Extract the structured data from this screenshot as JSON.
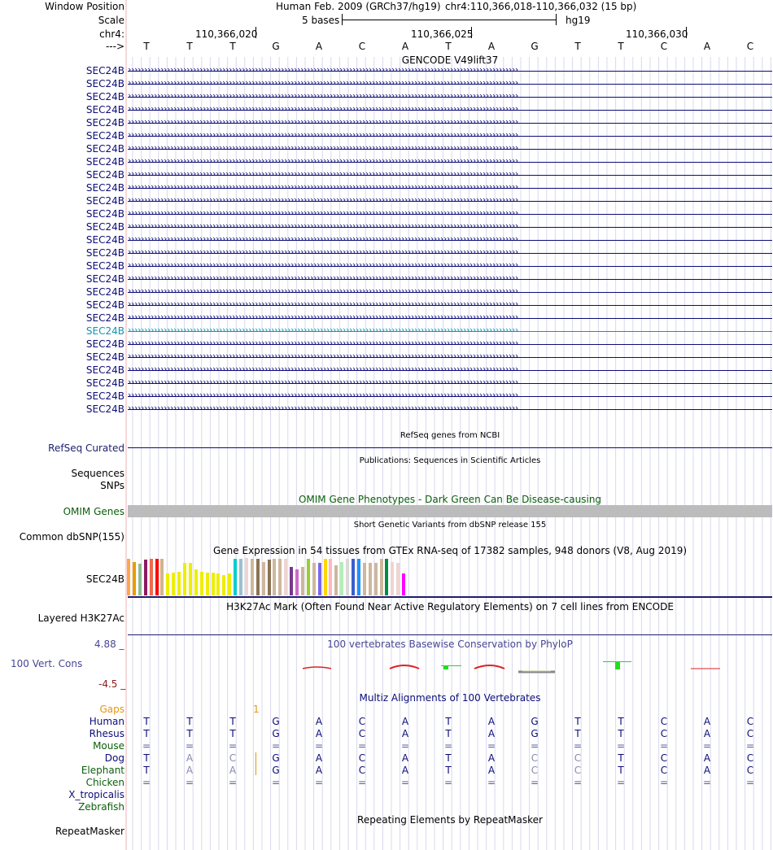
{
  "header": {
    "window_position_label": "Window Position",
    "scale_label": "Scale",
    "chr_label": "chr4:",
    "strand_label": "--->",
    "assembly": "Human Feb. 2009 (GRCh37/hg19)",
    "position": "chr4:110,366,018-110,366,032 (15 bp)",
    "scale_text": "5 bases",
    "scale_db": "hg19",
    "coords": [
      "110,366,020",
      "110,366,025",
      "110,366,030"
    ]
  },
  "bases": [
    "T",
    "T",
    "T",
    "G",
    "A",
    "C",
    "A",
    "T",
    "A",
    "G",
    "T",
    "T",
    "C",
    "A",
    "C"
  ],
  "gencode": {
    "title": "GENCODE V49lift37",
    "genes": [
      "SEC24B",
      "SEC24B",
      "SEC24B",
      "SEC24B",
      "SEC24B",
      "SEC24B",
      "SEC24B",
      "SEC24B",
      "SEC24B",
      "SEC24B",
      "SEC24B",
      "SEC24B",
      "SEC24B",
      "SEC24B",
      "SEC24B",
      "SEC24B",
      "SEC24B",
      "SEC24B",
      "SEC24B",
      "SEC24B",
      "SEC24B",
      "SEC24B",
      "SEC24B",
      "SEC24B",
      "SEC24B",
      "SEC24B",
      "SEC24B"
    ],
    "highlight_index": 20,
    "colors": {
      "gene": "#0c0c78",
      "highlight": "#1094b0"
    }
  },
  "refseq": {
    "title": "RefSeq genes from NCBI",
    "label": "RefSeq Curated"
  },
  "publications": {
    "title": "Publications: Sequences in Scientific Articles",
    "label1": "Sequences",
    "label2": "SNPs"
  },
  "omim": {
    "title": "OMIM Gene Phenotypes - Dark Green Can Be Disease-causing",
    "label": "OMIM Genes",
    "color": "#0b5e0b"
  },
  "dbsnp": {
    "title": "Short Genetic Variants from dbSNP release 155",
    "label": "Common dbSNP(155)"
  },
  "gtex": {
    "title": "Gene Expression in 54 tissues from GTEx RNA-seq of 17382 samples, 948 donors (V8, Aug 2019)",
    "label": "SEC24B",
    "bars": [
      {
        "v": 0.98,
        "c": "#ffa54f"
      },
      {
        "v": 0.9,
        "c": "#ee9a00"
      },
      {
        "v": 0.85,
        "c": "#8fbc8f"
      },
      {
        "v": 0.95,
        "c": "#8b1c62"
      },
      {
        "v": 0.98,
        "c": "#ee6a50"
      },
      {
        "v": 0.98,
        "c": "#ff0000"
      },
      {
        "v": 0.98,
        "c": "#d2b48c"
      },
      {
        "v": 0.58,
        "c": "#eeee00"
      },
      {
        "v": 0.6,
        "c": "#eeee00"
      },
      {
        "v": 0.62,
        "c": "#eeee00"
      },
      {
        "v": 0.87,
        "c": "#eeee00"
      },
      {
        "v": 0.87,
        "c": "#eeee00"
      },
      {
        "v": 0.7,
        "c": "#eeee00"
      },
      {
        "v": 0.64,
        "c": "#eeee00"
      },
      {
        "v": 0.6,
        "c": "#eeee00"
      },
      {
        "v": 0.6,
        "c": "#eeee00"
      },
      {
        "v": 0.58,
        "c": "#eeee00"
      },
      {
        "v": 0.54,
        "c": "#eeee00"
      },
      {
        "v": 0.58,
        "c": "#eeee00"
      },
      {
        "v": 0.98,
        "c": "#00cdcd"
      },
      {
        "v": 0.98,
        "c": "#9ac0cd"
      },
      {
        "v": 1.0,
        "c": "#eed5d2"
      },
      {
        "v": 0.98,
        "c": "#cdb79e"
      },
      {
        "v": 0.98,
        "c": "#8b7355"
      },
      {
        "v": 0.9,
        "c": "#cdb79e"
      },
      {
        "v": 0.96,
        "c": "#8b7355"
      },
      {
        "v": 0.98,
        "c": "#cdb79e"
      },
      {
        "v": 0.98,
        "c": "#cdb79e"
      },
      {
        "v": 0.98,
        "c": "#eed5d2"
      },
      {
        "v": 0.76,
        "c": "#7a378b"
      },
      {
        "v": 0.7,
        "c": "#cd69c9"
      },
      {
        "v": 0.76,
        "c": "#cdb79e"
      },
      {
        "v": 0.98,
        "c": "#9acd32"
      },
      {
        "v": 0.87,
        "c": "#cdb79e"
      },
      {
        "v": 0.87,
        "c": "#7a67ee"
      },
      {
        "v": 0.98,
        "c": "#ffd700"
      },
      {
        "v": 0.98,
        "c": "#ffb6c1"
      },
      {
        "v": 0.8,
        "c": "#cdb79e"
      },
      {
        "v": 0.9,
        "c": "#b4eeb4"
      },
      {
        "v": 0.98,
        "c": "#d9d9d9"
      },
      {
        "v": 0.98,
        "c": "#3a5fcd"
      },
      {
        "v": 0.98,
        "c": "#1e90ff"
      },
      {
        "v": 0.87,
        "c": "#cdb79e"
      },
      {
        "v": 0.87,
        "c": "#cdb79e"
      },
      {
        "v": 0.87,
        "c": "#cdb79e"
      },
      {
        "v": 0.98,
        "c": "#cdb79e"
      },
      {
        "v": 0.98,
        "c": "#008b45"
      },
      {
        "v": 0.9,
        "c": "#eed5d2"
      },
      {
        "v": 0.87,
        "c": "#eed5d2"
      },
      {
        "v": 0.58,
        "c": "#ff00ff"
      }
    ]
  },
  "h3k27ac": {
    "title": "H3K27Ac Mark (Often Found Near Active Regulatory Elements) on 7 cell lines from ENCODE",
    "label": "Layered H3K27Ac"
  },
  "phylop": {
    "title": "100 vertebrates Basewise Conservation by PhyloP",
    "label": "100 Vert. Cons",
    "max": "4.88 _",
    "min": "-4.5 _",
    "color": "#474794",
    "minColor": "#8b1a1a"
  },
  "multiz": {
    "title": "Multiz Alignments of 100 Vertebrates",
    "gaps_label": "Gaps",
    "gap_marker": "1",
    "species": [
      {
        "name": "Human",
        "color": "#0c0c78",
        "row": [
          "T",
          "T",
          "T",
          "G",
          "A",
          "C",
          "A",
          "T",
          "A",
          "G",
          "T",
          "T",
          "C",
          "A",
          "C"
        ]
      },
      {
        "name": "Rhesus",
        "color": "#0c0c78",
        "row": [
          "T",
          "T",
          "T",
          "G",
          "A",
          "C",
          "A",
          "T",
          "A",
          "G",
          "T",
          "T",
          "C",
          "A",
          "C"
        ]
      },
      {
        "name": "Mouse",
        "color": "#0b5e0b",
        "row": [
          "=",
          "=",
          "=",
          "=",
          "=",
          "=",
          "=",
          "=",
          "=",
          "=",
          "=",
          "=",
          "=",
          "=",
          "="
        ]
      },
      {
        "name": "Dog",
        "color": "#0c0c78",
        "row": [
          "T",
          "A",
          "C",
          "G",
          "A",
          "C",
          "A",
          "T",
          "A",
          "C",
          "C",
          "T",
          "C",
          "A",
          "C"
        ]
      },
      {
        "name": "Elephant",
        "color": "#0b5e0b",
        "row": [
          "T",
          "A",
          "A",
          "G",
          "A",
          "C",
          "A",
          "T",
          "A",
          "C",
          "C",
          "T",
          "C",
          "A",
          "C"
        ]
      },
      {
        "name": "Chicken",
        "color": "#0b5e0b",
        "row": [
          "=",
          "=",
          "=",
          "=",
          "=",
          "=",
          "=",
          "=",
          "=",
          "=",
          "=",
          "=",
          "=",
          "=",
          "="
        ]
      },
      {
        "name": "X_tropicalis",
        "color": "#0c0c78",
        "row": []
      },
      {
        "name": "Zebrafish",
        "color": "#0b5e0b",
        "row": []
      }
    ]
  },
  "repeatmasker": {
    "title": "Repeating Elements by RepeatMasker",
    "label": "RepeatMasker"
  }
}
